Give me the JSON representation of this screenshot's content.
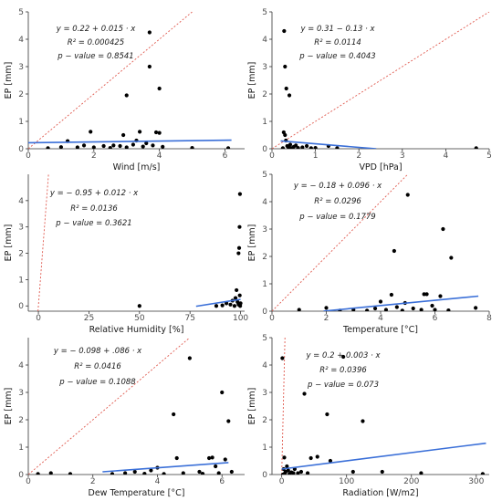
{
  "chart_data": [
    {
      "type": "scatter",
      "xlabel": "Wind [m/s]",
      "ylabel": "EP [mm]",
      "xlim": [
        0,
        6.6
      ],
      "ylim": [
        0,
        5
      ],
      "xticks": [
        0,
        2,
        4,
        6
      ],
      "yticks": [
        0,
        1,
        2,
        3,
        4,
        5
      ],
      "annotation": [
        "y = 0.22 + 0.015 · x",
        "R² = 0.000425",
        "p − value = 0.8541"
      ],
      "regression": {
        "intercept": 0.22,
        "slope": 0.015,
        "x_range": [
          0,
          6.2
        ]
      },
      "points": [
        {
          "x": 0.6,
          "y": 0.02
        },
        {
          "x": 1.0,
          "y": 0.06
        },
        {
          "x": 1.2,
          "y": 0.28
        },
        {
          "x": 1.5,
          "y": 0.05
        },
        {
          "x": 1.7,
          "y": 0.12
        },
        {
          "x": 1.9,
          "y": 0.62
        },
        {
          "x": 2.0,
          "y": 0.05
        },
        {
          "x": 2.3,
          "y": 0.1
        },
        {
          "x": 2.5,
          "y": 0.03
        },
        {
          "x": 2.6,
          "y": 0.12
        },
        {
          "x": 2.8,
          "y": 0.1
        },
        {
          "x": 2.9,
          "y": 0.5
        },
        {
          "x": 3.0,
          "y": 0.05
        },
        {
          "x": 3.0,
          "y": 1.95
        },
        {
          "x": 3.2,
          "y": 0.15
        },
        {
          "x": 3.3,
          "y": 0.3
        },
        {
          "x": 3.4,
          "y": 0.62
        },
        {
          "x": 3.5,
          "y": 0.08
        },
        {
          "x": 3.6,
          "y": 0.2
        },
        {
          "x": 3.7,
          "y": 4.25
        },
        {
          "x": 3.7,
          "y": 3.0
        },
        {
          "x": 3.8,
          "y": 0.12
        },
        {
          "x": 3.9,
          "y": 0.6
        },
        {
          "x": 4.0,
          "y": 0.58
        },
        {
          "x": 4.0,
          "y": 2.2
        },
        {
          "x": 4.1,
          "y": 0.07
        },
        {
          "x": 5.0,
          "y": 0.03
        },
        {
          "x": 6.1,
          "y": 0.02
        }
      ]
    },
    {
      "type": "scatter",
      "xlabel": "VPD [hPa]",
      "ylabel": "EP [mm]",
      "xlim": [
        0,
        5
      ],
      "ylim": [
        0,
        5
      ],
      "xticks": [
        0,
        1,
        2,
        3,
        4,
        5
      ],
      "yticks": [
        0,
        1,
        2,
        3,
        4,
        5
      ],
      "annotation": [
        "y = 0.31 − 0.13 · x",
        "R² = 0.0114",
        "p − value = 0.4043"
      ],
      "regression": {
        "intercept": 0.31,
        "slope": -0.13,
        "x_range": [
          0.2,
          2.4
        ]
      },
      "points": [
        {
          "x": 0.25,
          "y": 0.02
        },
        {
          "x": 0.27,
          "y": 0.6
        },
        {
          "x": 0.28,
          "y": 4.3
        },
        {
          "x": 0.3,
          "y": 3.0
        },
        {
          "x": 0.3,
          "y": 0.5
        },
        {
          "x": 0.32,
          "y": 0.3
        },
        {
          "x": 0.33,
          "y": 2.2
        },
        {
          "x": 0.35,
          "y": 0.1
        },
        {
          "x": 0.38,
          "y": 0.05
        },
        {
          "x": 0.4,
          "y": 1.95
        },
        {
          "x": 0.42,
          "y": 0.15
        },
        {
          "x": 0.45,
          "y": 0.02
        },
        {
          "x": 0.5,
          "y": 0.07
        },
        {
          "x": 0.55,
          "y": 0.12
        },
        {
          "x": 0.6,
          "y": 0.03
        },
        {
          "x": 0.7,
          "y": 0.05
        },
        {
          "x": 0.8,
          "y": 0.1
        },
        {
          "x": 0.9,
          "y": 0.02
        },
        {
          "x": 1.0,
          "y": 0.03
        },
        {
          "x": 1.3,
          "y": 0.1
        },
        {
          "x": 1.5,
          "y": 0.02
        },
        {
          "x": 4.7,
          "y": 0.02
        }
      ]
    },
    {
      "type": "scatter",
      "xlabel": "Relative Humidity [%]",
      "ylabel": "EP [mm]",
      "xlim": [
        -5,
        102
      ],
      "ylim": [
        -0.2,
        5
      ],
      "xticks": [
        0,
        25,
        50,
        75,
        100
      ],
      "yticks": [
        0,
        1,
        2,
        3,
        4
      ],
      "annotation": [
        "y = − 0.95 + 0.012 · x",
        "R² = 0.0136",
        "p − value = 0.3621"
      ],
      "regression": {
        "intercept": -0.95,
        "slope": 0.012,
        "x_range": [
          78,
          100
        ]
      },
      "points": [
        {
          "x": 50,
          "y": 0.0
        },
        {
          "x": 88,
          "y": 0.0
        },
        {
          "x": 91,
          "y": 0.02
        },
        {
          "x": 93,
          "y": 0.1
        },
        {
          "x": 95,
          "y": 0.05
        },
        {
          "x": 96,
          "y": 0.2
        },
        {
          "x": 97,
          "y": 0.0
        },
        {
          "x": 97.5,
          "y": 0.3
        },
        {
          "x": 98,
          "y": 0.6
        },
        {
          "x": 98.5,
          "y": 0.15
        },
        {
          "x": 99,
          "y": 2.0
        },
        {
          "x": 99,
          "y": 0.05
        },
        {
          "x": 99.3,
          "y": 2.2
        },
        {
          "x": 99.5,
          "y": 3.0
        },
        {
          "x": 99.6,
          "y": 0.4
        },
        {
          "x": 99.7,
          "y": 4.25
        },
        {
          "x": 99.8,
          "y": 0.0
        },
        {
          "x": 100,
          "y": 0.1
        }
      ]
    },
    {
      "type": "scatter",
      "xlabel": "Temperature [°C]",
      "ylabel": "EP [mm]",
      "xlim": [
        0,
        8
      ],
      "ylim": [
        0,
        5
      ],
      "xticks": [
        0,
        2,
        4,
        6,
        8
      ],
      "yticks": [
        0,
        1,
        2,
        3,
        4,
        5
      ],
      "annotation": [
        "y = − 0.18 + 0.096 · x",
        "R² = 0.0296",
        "p − value = 0.1779"
      ],
      "regression": {
        "intercept": -0.18,
        "slope": 0.096,
        "x_range": [
          1.9,
          7.6
        ]
      },
      "points": [
        {
          "x": 1.0,
          "y": 0.05
        },
        {
          "x": 2.0,
          "y": 0.12
        },
        {
          "x": 2.5,
          "y": 0.02
        },
        {
          "x": 3.0,
          "y": 0.05
        },
        {
          "x": 3.5,
          "y": 0.02
        },
        {
          "x": 3.8,
          "y": 0.1
        },
        {
          "x": 4.0,
          "y": 0.35
        },
        {
          "x": 4.2,
          "y": 0.05
        },
        {
          "x": 4.4,
          "y": 0.6
        },
        {
          "x": 4.5,
          "y": 2.2
        },
        {
          "x": 4.6,
          "y": 0.15
        },
        {
          "x": 4.8,
          "y": 0.02
        },
        {
          "x": 4.9,
          "y": 0.3
        },
        {
          "x": 5.0,
          "y": 4.25
        },
        {
          "x": 5.2,
          "y": 0.1
        },
        {
          "x": 5.5,
          "y": 0.05
        },
        {
          "x": 5.6,
          "y": 0.62
        },
        {
          "x": 5.7,
          "y": 0.62
        },
        {
          "x": 5.9,
          "y": 0.2
        },
        {
          "x": 6.0,
          "y": 0.05
        },
        {
          "x": 6.2,
          "y": 0.55
        },
        {
          "x": 6.3,
          "y": 3.0
        },
        {
          "x": 6.5,
          "y": 0.03
        },
        {
          "x": 6.6,
          "y": 1.95
        },
        {
          "x": 7.5,
          "y": 0.12
        }
      ]
    },
    {
      "type": "scatter",
      "xlabel": "Dew Temperature [°C]",
      "ylabel": "EP [mm]",
      "xlim": [
        0,
        6.7
      ],
      "ylim": [
        0,
        5
      ],
      "xticks": [
        0,
        2,
        4,
        6
      ],
      "yticks": [
        0,
        1,
        2,
        3,
        4
      ],
      "annotation": [
        "y = − 0.098 + .086 · x",
        "R² = 0.0416",
        "p − value = 0.1088"
      ],
      "regression": {
        "intercept": -0.098,
        "slope": 0.086,
        "x_range": [
          2.3,
          6.2
        ]
      },
      "points": [
        {
          "x": 0.3,
          "y": 0.02
        },
        {
          "x": 0.7,
          "y": 0.05
        },
        {
          "x": 1.3,
          "y": 0.02
        },
        {
          "x": 2.6,
          "y": 0.02
        },
        {
          "x": 3.0,
          "y": 0.05
        },
        {
          "x": 3.3,
          "y": 0.1
        },
        {
          "x": 3.6,
          "y": 0.03
        },
        {
          "x": 3.8,
          "y": 0.15
        },
        {
          "x": 4.0,
          "y": 0.25
        },
        {
          "x": 4.2,
          "y": 0.02
        },
        {
          "x": 4.5,
          "y": 2.2
        },
        {
          "x": 4.6,
          "y": 0.6
        },
        {
          "x": 4.8,
          "y": 0.05
        },
        {
          "x": 5.0,
          "y": 4.25
        },
        {
          "x": 5.3,
          "y": 0.1
        },
        {
          "x": 5.4,
          "y": 0.03
        },
        {
          "x": 5.6,
          "y": 0.6
        },
        {
          "x": 5.7,
          "y": 0.62
        },
        {
          "x": 5.8,
          "y": 0.3
        },
        {
          "x": 5.9,
          "y": 0.05
        },
        {
          "x": 6.0,
          "y": 3.0
        },
        {
          "x": 6.1,
          "y": 0.55
        },
        {
          "x": 6.2,
          "y": 1.95
        },
        {
          "x": 6.3,
          "y": 0.1
        }
      ]
    },
    {
      "type": "scatter",
      "xlabel": "Radiation [W/m2]",
      "ylabel": "EP [mm]",
      "xlim": [
        -15,
        320
      ],
      "ylim": [
        0,
        5
      ],
      "xticks": [
        0,
        100,
        200,
        300
      ],
      "yticks": [
        0,
        1,
        2,
        3,
        4,
        5
      ],
      "annotation": [
        "y = 0.2 + 0.003 · x",
        "R² = 0.0396",
        "p − value = 0.073"
      ],
      "regression": {
        "intercept": 0.2,
        "slope": 0.003,
        "x_range": [
          0,
          315
        ]
      },
      "points": [
        {
          "x": 1,
          "y": 4.25
        },
        {
          "x": 2,
          "y": 0.0
        },
        {
          "x": 3,
          "y": 0.2
        },
        {
          "x": 4,
          "y": 0.62
        },
        {
          "x": 5,
          "y": 0.05
        },
        {
          "x": 6,
          "y": 0.1
        },
        {
          "x": 8,
          "y": 0.3
        },
        {
          "x": 10,
          "y": 0.15
        },
        {
          "x": 12,
          "y": 0.02
        },
        {
          "x": 15,
          "y": 0.08
        },
        {
          "x": 18,
          "y": 0.05
        },
        {
          "x": 20,
          "y": 0.2
        },
        {
          "x": 25,
          "y": 0.05
        },
        {
          "x": 30,
          "y": 0.1
        },
        {
          "x": 35,
          "y": 2.95
        },
        {
          "x": 40,
          "y": 0.05
        },
        {
          "x": 45,
          "y": 0.6
        },
        {
          "x": 55,
          "y": 0.65
        },
        {
          "x": 70,
          "y": 2.2
        },
        {
          "x": 75,
          "y": 0.5
        },
        {
          "x": 95,
          "y": 4.3
        },
        {
          "x": 110,
          "y": 0.1
        },
        {
          "x": 125,
          "y": 1.95
        },
        {
          "x": 155,
          "y": 0.1
        },
        {
          "x": 215,
          "y": 0.05
        },
        {
          "x": 310,
          "y": 0.02
        }
      ]
    }
  ]
}
